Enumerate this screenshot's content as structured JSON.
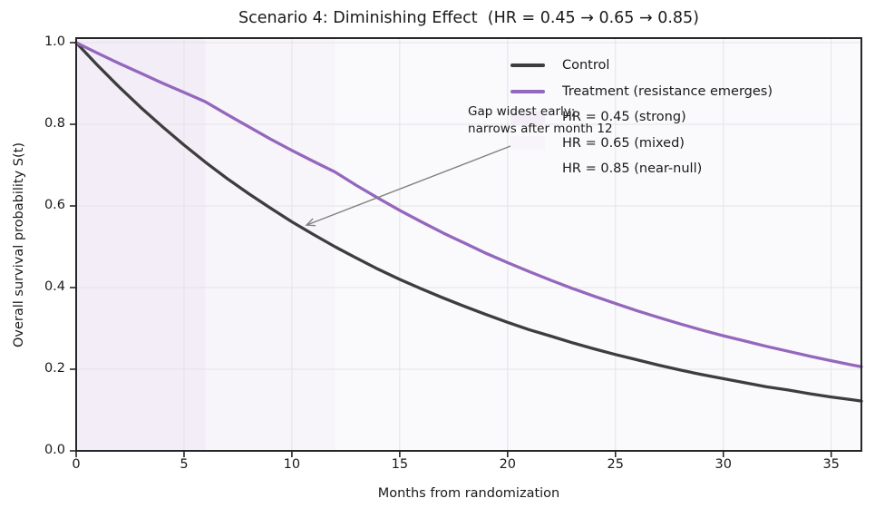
{
  "chart_data": {
    "type": "line",
    "title": "Scenario 4: Diminishing Effect  (HR = 0.45 → 0.65 → 0.85)",
    "xlabel": "Months from randomization",
    "ylabel": "Overall survival probability S(t)",
    "xlim": [
      0,
      36.4
    ],
    "ylim": [
      0.0,
      1.0
    ],
    "xticks": [
      0,
      5,
      10,
      15,
      20,
      25,
      30,
      35
    ],
    "yticks": [
      0.0,
      0.2,
      0.4,
      0.6,
      0.8,
      1.0
    ],
    "grid": true,
    "grid_color": "#e4e2e8",
    "spine_color": "#262626",
    "legend_position": "upper right",
    "x": [
      0,
      1,
      2,
      3,
      4,
      5,
      6,
      7,
      8,
      9,
      10,
      11,
      12,
      13,
      14,
      15,
      16,
      17,
      18,
      19,
      20,
      21,
      22,
      23,
      24,
      25,
      26,
      27,
      28,
      29,
      30,
      31,
      32,
      33,
      34,
      35,
      36,
      36.4
    ],
    "series": [
      {
        "name": "Control",
        "color": "#3d3d3d",
        "values": [
          1.0,
          0.944,
          0.891,
          0.841,
          0.794,
          0.749,
          0.707,
          0.667,
          0.63,
          0.595,
          0.561,
          0.53,
          0.5,
          0.472,
          0.445,
          0.42,
          0.397,
          0.375,
          0.354,
          0.334,
          0.315,
          0.297,
          0.281,
          0.265,
          0.25,
          0.236,
          0.223,
          0.21,
          0.198,
          0.187,
          0.177,
          0.167,
          0.157,
          0.149,
          0.14,
          0.132,
          0.125,
          0.122
        ]
      },
      {
        "name": "Treatment (resistance emerges)",
        "color": "#9467bd",
        "values": [
          1.0,
          0.974,
          0.949,
          0.925,
          0.901,
          0.878,
          0.855,
          0.824,
          0.794,
          0.764,
          0.736,
          0.709,
          0.683,
          0.65,
          0.619,
          0.589,
          0.561,
          0.534,
          0.509,
          0.484,
          0.461,
          0.439,
          0.418,
          0.398,
          0.379,
          0.361,
          0.343,
          0.327,
          0.311,
          0.296,
          0.282,
          0.269,
          0.256,
          0.244,
          0.232,
          0.221,
          0.21,
          0.206
        ]
      }
    ],
    "regions": [
      {
        "label": "HR = 0.45 (strong)",
        "from": 0,
        "to": 6,
        "color": "#f2edf7"
      },
      {
        "label": "HR = 0.65 (mixed)",
        "from": 6,
        "to": 12,
        "color": "#f7f5fa"
      },
      {
        "label": "HR = 0.85 (near-null)",
        "from": 12,
        "to": 36.4,
        "color": "#fafafc"
      }
    ],
    "annotation": {
      "line1": "Gap widest early;",
      "line2": "narrows after month 12",
      "text_xy": [
        18.16,
        0.851
      ],
      "arrow_from": [
        20.3,
        0.75
      ],
      "arrow_to": [
        10.68,
        0.553
      ],
      "arrow_color": "#808080"
    }
  }
}
